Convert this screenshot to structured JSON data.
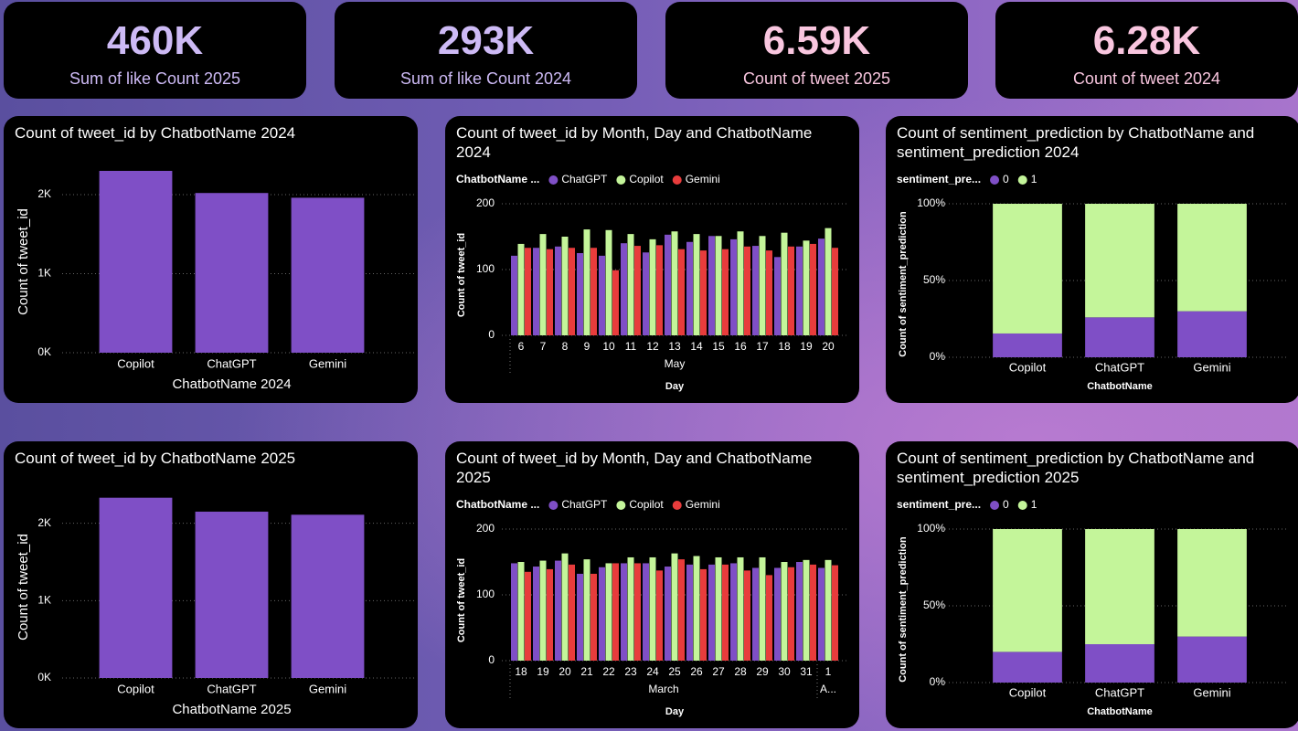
{
  "cards": [
    {
      "value": "460K",
      "label": "Sum of like Count 2025",
      "color": "#cdbaf5"
    },
    {
      "value": "293K",
      "label": "Sum of like Count 2024",
      "color": "#cdbaf5"
    },
    {
      "value": "6.59K",
      "label": "Count of tweet 2025",
      "color": "#f9c6df"
    },
    {
      "value": "6.28K",
      "label": "Count of tweet 2024",
      "color": "#f9c6df"
    }
  ],
  "chart_data": [
    {
      "type": "bar",
      "title": "Count of tweet_id by ChatbotName 2024",
      "x_label": "ChatbotName 2024",
      "y_label": "Count of tweet_id",
      "categories": [
        "Copilot",
        "ChatGPT",
        "Gemini"
      ],
      "values": [
        2300,
        2020,
        1960
      ],
      "color": "#7f4fc6",
      "ylim": [
        0,
        2300
      ],
      "yticks": [
        {
          "value": 0,
          "label": "0K"
        },
        {
          "value": 1000,
          "label": "1K"
        },
        {
          "value": 2000,
          "label": "2K"
        }
      ],
      "grid": true
    },
    {
      "type": "grouped_bar",
      "title": "Count of tweet_id by Month, Day and ChatbotName 2024",
      "x_label": "Day",
      "y_label": "Count of tweet_id",
      "legend_title": "ChatbotName ...",
      "categories": [
        "6",
        "7",
        "8",
        "9",
        "10",
        "11",
        "12",
        "13",
        "14",
        "15",
        "16",
        "17",
        "18",
        "19",
        "20"
      ],
      "months": [
        "May",
        "May",
        "May",
        "May",
        "May",
        "May",
        "May",
        "May",
        "May",
        "May",
        "May",
        "May",
        "May",
        "May",
        "May"
      ],
      "series": [
        {
          "name": "ChatGPT",
          "color": "#7f4fc6",
          "values": [
            121,
            133,
            135,
            125,
            121,
            140,
            126,
            153,
            142,
            151,
            146,
            136,
            119,
            135,
            147
          ]
        },
        {
          "name": "Copilot",
          "color": "#c4f59a",
          "values": [
            139,
            154,
            150,
            161,
            160,
            154,
            146,
            158,
            154,
            151,
            158,
            151,
            156,
            144,
            163
          ]
        },
        {
          "name": "Gemini",
          "color": "#e83c3c",
          "values": [
            133,
            131,
            133,
            133,
            99,
            136,
            137,
            131,
            129,
            131,
            135,
            129,
            135,
            139,
            133
          ]
        }
      ],
      "ylim": [
        0,
        200
      ],
      "yticks": [
        0,
        100,
        200
      ],
      "grid": true
    },
    {
      "type": "stacked_bar_100",
      "title": "Count of sentiment_prediction by ChatbotName and sentiment_prediction 2024",
      "x_label": "ChatbotName",
      "y_label": "Count of sentiment_prediction",
      "legend_title": "sentiment_pre...",
      "categories": [
        "Copilot",
        "ChatGPT",
        "Gemini"
      ],
      "series": [
        {
          "name": "0",
          "color": "#7f4fc6",
          "values": [
            15.5,
            26,
            30
          ]
        },
        {
          "name": "1",
          "color": "#c4f59a",
          "values": [
            84.5,
            74,
            70
          ]
        }
      ],
      "ylim": [
        0,
        100
      ],
      "yticks": [
        {
          "value": 0,
          "label": "0%"
        },
        {
          "value": 50,
          "label": "50%"
        },
        {
          "value": 100,
          "label": "100%"
        }
      ],
      "grid": true
    },
    {
      "type": "bar",
      "title": "Count of tweet_id by ChatbotName 2025",
      "x_label": "ChatbotName 2025",
      "y_label": "Count of tweet_id",
      "categories": [
        "Copilot",
        "ChatGPT",
        "Gemini"
      ],
      "values": [
        2330,
        2150,
        2110
      ],
      "color": "#7f4fc6",
      "ylim": [
        0,
        2350
      ],
      "yticks": [
        {
          "value": 0,
          "label": "0K"
        },
        {
          "value": 1000,
          "label": "1K"
        },
        {
          "value": 2000,
          "label": "2K"
        }
      ],
      "grid": true
    },
    {
      "type": "grouped_bar",
      "title": "Count of tweet_id by Month, Day and ChatbotName 2025",
      "x_label": "Day",
      "y_label": "Count of tweet_id",
      "legend_title": "ChatbotName ...",
      "categories": [
        "18",
        "19",
        "20",
        "21",
        "22",
        "23",
        "24",
        "25",
        "26",
        "27",
        "28",
        "29",
        "30",
        "31",
        "1"
      ],
      "months": [
        "March",
        "March",
        "March",
        "March",
        "March",
        "March",
        "March",
        "March",
        "March",
        "March",
        "March",
        "March",
        "March",
        "March",
        "A..."
      ],
      "series": [
        {
          "name": "ChatGPT",
          "color": "#7f4fc6",
          "values": [
            148,
            143,
            152,
            132,
            142,
            148,
            148,
            143,
            146,
            146,
            148,
            141,
            141,
            150,
            141
          ]
        },
        {
          "name": "Copilot",
          "color": "#c4f59a",
          "values": [
            150,
            152,
            163,
            154,
            148,
            157,
            157,
            163,
            159,
            157,
            157,
            157,
            150,
            153,
            153
          ]
        },
        {
          "name": "Gemini",
          "color": "#e83c3c",
          "values": [
            135,
            139,
            146,
            132,
            148,
            148,
            137,
            154,
            139,
            146,
            137,
            130,
            142,
            146,
            145
          ]
        }
      ],
      "ylim": [
        0,
        200
      ],
      "yticks": [
        0,
        100,
        200
      ],
      "grid": true
    },
    {
      "type": "stacked_bar_100",
      "title": "Count of sentiment_prediction by ChatbotName and sentiment_prediction 2025",
      "x_label": "ChatbotName",
      "y_label": "Count of sentiment_prediction",
      "legend_title": "sentiment_pre...",
      "categories": [
        "Copilot",
        "ChatGPT",
        "Gemini"
      ],
      "series": [
        {
          "name": "0",
          "color": "#7f4fc6",
          "values": [
            20,
            25,
            30
          ]
        },
        {
          "name": "1",
          "color": "#c4f59a",
          "values": [
            80,
            75,
            70
          ]
        }
      ],
      "ylim": [
        0,
        100
      ],
      "yticks": [
        {
          "value": 0,
          "label": "0%"
        },
        {
          "value": 50,
          "label": "50%"
        },
        {
          "value": 100,
          "label": "100%"
        }
      ],
      "grid": true
    }
  ]
}
